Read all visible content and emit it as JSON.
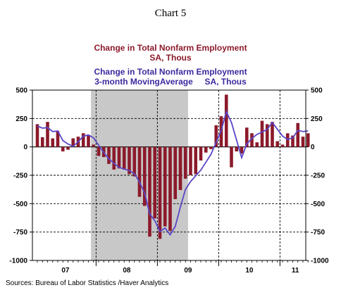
{
  "page_title": "Chart 5",
  "source": "Sources:  Bureau of Labor Statistics /Haver Analytics",
  "colors": {
    "bars": "#8b1a2b",
    "line": "#5a46c8",
    "recession_shade": "#c8c8c8",
    "legend_bar_text": "#8b1a2b",
    "legend_line_text": "#3a2a9e"
  },
  "chart_data": {
    "type": "bar",
    "legend": {
      "bar_series": [
        "Change in Total Nonfarm Employment",
        "SA, Thous"
      ],
      "line_series": [
        "Change in Total Nonfarm Employment",
        "3-month MovingAverage     SA, Thous"
      ]
    },
    "ylim": [
      -1000,
      500
    ],
    "y_ticks": [
      500,
      250,
      0,
      -250,
      -500,
      -750,
      -1000
    ],
    "y_tick_labels": [
      "500",
      "250",
      "0",
      "-250",
      "-500",
      "-750",
      "-1000"
    ],
    "grid": true,
    "x_period_labels": [
      "07",
      "08",
      "09",
      "10",
      "11"
    ],
    "recession_shading": {
      "start_month_index": 11,
      "end_month_index": 29
    },
    "series": [
      {
        "name": "Change in Total Nonfarm Employment SA, Thous",
        "type": "bar",
        "values": [
          200,
          85,
          220,
          75,
          140,
          -40,
          -25,
          75,
          90,
          120,
          100,
          20,
          -80,
          -90,
          -150,
          -200,
          -190,
          -200,
          -240,
          -260,
          -440,
          -520,
          -790,
          -630,
          -810,
          -700,
          -740,
          -460,
          -380,
          -280,
          -250,
          -240,
          -120,
          -50,
          -20,
          190,
          270,
          460,
          -180,
          -40,
          -60,
          170,
          120,
          40,
          230,
          200,
          220,
          50,
          20,
          120,
          100,
          210,
          90,
          120
        ]
      },
      {
        "name": "Change in Total Nonfarm Employment 3-month MovingAverage SA, Thous",
        "type": "line",
        "values": [
          185,
          165,
          170,
          135,
          140,
          55,
          25,
          5,
          45,
          95,
          105,
          80,
          15,
          -50,
          -105,
          -145,
          -180,
          -195,
          -210,
          -235,
          -310,
          -405,
          -590,
          -650,
          -745,
          -715,
          -775,
          -700,
          -530,
          -375,
          -305,
          -255,
          -205,
          -135,
          -65,
          40,
          145,
          310,
          215,
          60,
          -95,
          25,
          75,
          110,
          130,
          155,
          215,
          155,
          95,
          65,
          80,
          145,
          135,
          140
        ]
      }
    ]
  }
}
